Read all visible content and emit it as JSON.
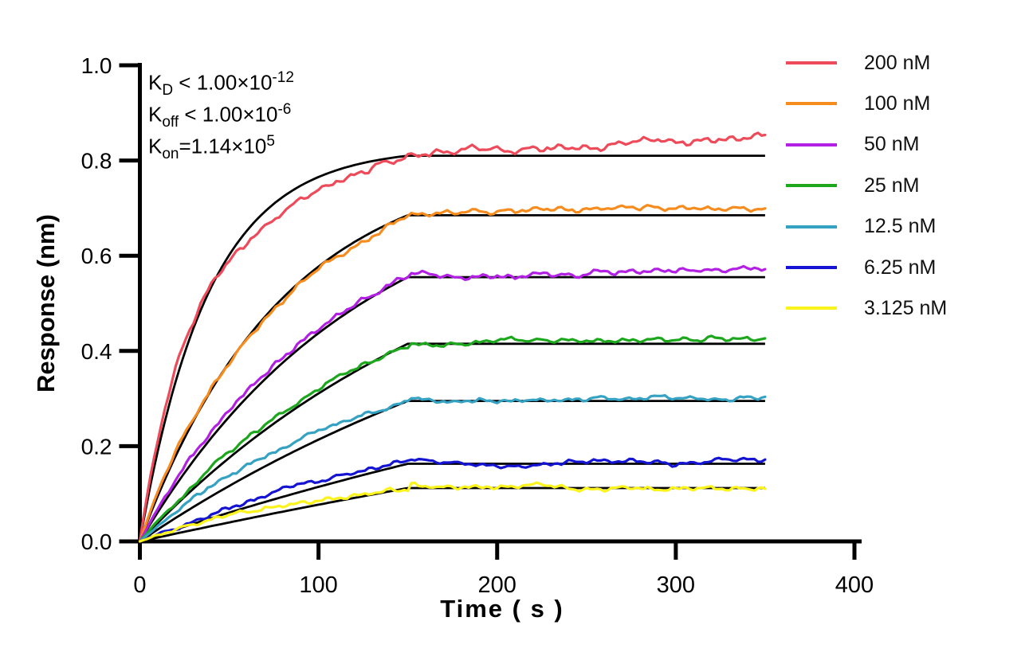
{
  "chart_data": {
    "type": "line",
    "title": "",
    "xlabel": "Time ( s )",
    "ylabel": "Response (nm)",
    "xlim": [
      0,
      400
    ],
    "ylim": [
      0.0,
      1.0
    ],
    "xticks": [
      "0",
      "100",
      "200",
      "300",
      "400"
    ],
    "yticks": [
      "0.0",
      "0.2",
      "0.4",
      "0.6",
      "0.8",
      "1.0"
    ],
    "grid": false,
    "legend_position": "outside-top-right",
    "background_color": "#FFFFFF",
    "axis_color": "#000000",
    "fit_line_color": "#000000",
    "association_end_s": 150,
    "trace_end_s": 350,
    "annotations": [
      {
        "base": "K",
        "sub": "D",
        "mid": " < 1.00×10",
        "sup": "-12"
      },
      {
        "base": "K",
        "sub": "off",
        "mid": " < 1.00×10",
        "sup": "-6"
      },
      {
        "base": "K",
        "sub": "on",
        "mid": "=1.14×10",
        "sup": "5"
      }
    ],
    "series": [
      {
        "label": "200 nM",
        "color": "#ED4A5A",
        "r150": 0.81,
        "r350": 0.847,
        "k_fit": 0.026,
        "w": 0.45,
        "ka": 0.05,
        "kb": 0.011,
        "overshoot": 0.0,
        "noise": 1.4
      },
      {
        "label": "100 nM",
        "color": "#F68B1E",
        "r150": 0.685,
        "r350": 0.705,
        "k_fit": 0.0125,
        "w": 0.2,
        "ka": 0.03,
        "kb": 0.0075,
        "overshoot": 0.004,
        "noise": 1.1
      },
      {
        "label": "50 nM",
        "color": "#B221E3",
        "r150": 0.555,
        "r350": 0.57,
        "k_fit": 0.008,
        "w": 0.15,
        "ka": 0.02,
        "kb": 0.007,
        "overshoot": 0.006,
        "noise": 1.2
      },
      {
        "label": "25 nM",
        "color": "#1CA71C",
        "r150": 0.415,
        "r350": 0.43,
        "k_fit": 0.0052,
        "w": 0.22,
        "ka": 0.012,
        "kb": 0.0048,
        "overshoot": 0.005,
        "noise": 1.0
      },
      {
        "label": "12.5 nM",
        "color": "#35A2C3",
        "r150": 0.295,
        "r350": 0.303,
        "k_fit": 0.0036,
        "w": 0.3,
        "ka": 0.012,
        "kb": 0.0036,
        "overshoot": 0.011,
        "noise": 1.0
      },
      {
        "label": "6.25 nM",
        "color": "#1414D2",
        "r150": 0.163,
        "r350": 0.166,
        "k_fit": 0.0022,
        "w": 0.28,
        "ka": 0.01,
        "kb": 0.0025,
        "overshoot": 0.007,
        "noise": 1.0
      },
      {
        "label": "3.125 nM",
        "color": "#FBF31C",
        "r150": 0.112,
        "r350": 0.108,
        "k_fit": 0.0013,
        "w": 0.3,
        "ka": 0.012,
        "kb": 0.0015,
        "overshoot": 0.015,
        "noise": 1.0
      }
    ]
  }
}
